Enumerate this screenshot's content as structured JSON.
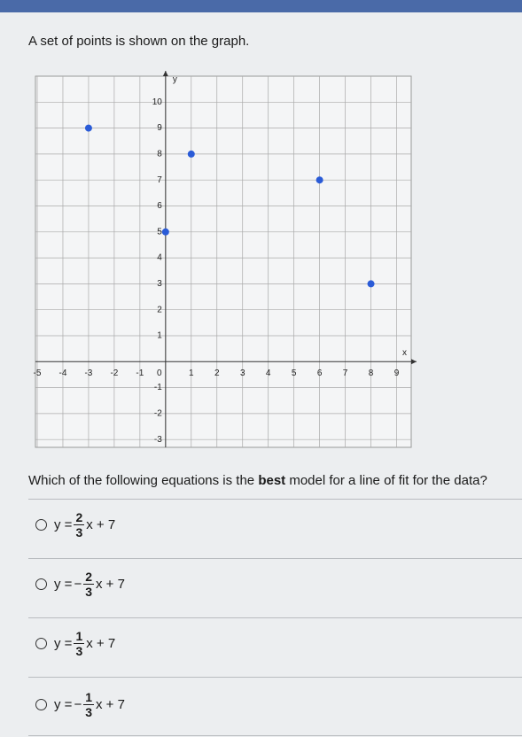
{
  "intro": "A set of points is shown on the graph.",
  "chart_data": {
    "type": "scatter",
    "x_label": "x",
    "y_label": "y",
    "x": [
      -3,
      1,
      0,
      6,
      8
    ],
    "values": [
      9,
      8,
      5,
      7,
      3
    ],
    "color": "#2a5bd7",
    "xlim": [
      -5,
      9.5
    ],
    "ylim": [
      -3.3,
      11
    ],
    "xticks": [
      -5,
      -4,
      -3,
      -2,
      -1,
      0,
      1,
      2,
      3,
      4,
      5,
      6,
      7,
      8,
      9
    ],
    "yticks": [
      -3,
      -2,
      -1,
      1,
      2,
      3,
      4,
      5,
      6,
      7,
      8,
      9,
      10
    ],
    "grid": true
  },
  "question": {
    "before": "Which of the following equations is the",
    "bold": "best",
    "after": "model for a line of fit for the data?"
  },
  "options": [
    {
      "lhs": "y =",
      "numerator": "2",
      "denominator": "3",
      "rest": "x + 7"
    },
    {
      "lhs": "y =",
      "sign": "−",
      "numerator": "2",
      "denominator": "3",
      "rest": "x + 7"
    },
    {
      "lhs": "y =",
      "numerator": "1",
      "denominator": "3",
      "rest": "x + 7"
    },
    {
      "lhs": "y =",
      "sign": "−",
      "numerator": "1",
      "denominator": "3",
      "rest": "x + 7"
    }
  ]
}
